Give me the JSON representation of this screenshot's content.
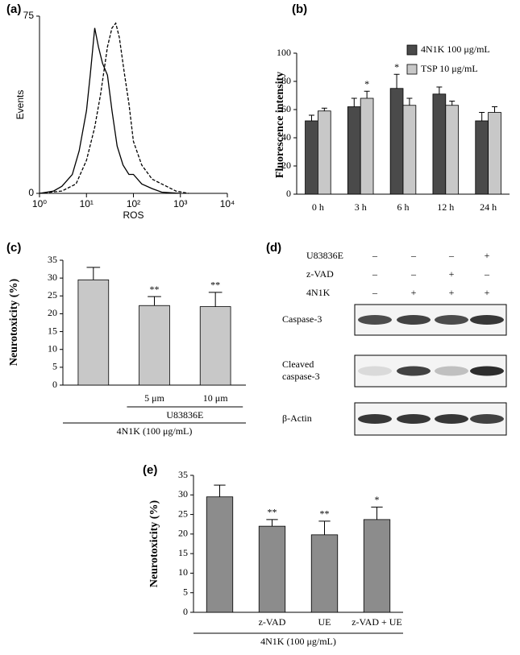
{
  "chart_data": [
    {
      "type": "line",
      "panel_label": "(a)",
      "xlabel": "ROS",
      "ylabel": "Events",
      "log_x": true,
      "xlim": [
        1,
        10000
      ],
      "xticks": [
        {
          "value": 1,
          "label": "10⁰"
        },
        {
          "value": 10,
          "label": "10¹"
        },
        {
          "value": 100,
          "label": "10²"
        },
        {
          "value": 1000,
          "label": "10³"
        },
        {
          "value": 10000,
          "label": "10⁴"
        }
      ],
      "ylim": [
        0,
        75
      ],
      "yticks": [
        0,
        75
      ],
      "series": [
        {
          "style": "solid",
          "color": "#000000",
          "x": [
            1,
            2,
            3,
            5,
            7,
            10,
            12,
            15,
            18,
            22,
            28,
            35,
            45,
            60,
            80,
            100,
            150,
            250,
            400,
            1000
          ],
          "values": [
            0,
            1,
            3,
            8,
            18,
            35,
            50,
            70,
            62,
            55,
            50,
            35,
            20,
            12,
            8,
            8,
            4,
            2,
            0.5,
            0
          ]
        },
        {
          "style": "dashed",
          "color": "#000000",
          "x": [
            1,
            3,
            6,
            10,
            15,
            20,
            28,
            35,
            42,
            50,
            65,
            80,
            100,
            150,
            250,
            400,
            800,
            1500
          ],
          "values": [
            0,
            1,
            4,
            14,
            28,
            42,
            62,
            70,
            72,
            66,
            50,
            38,
            22,
            12,
            6,
            4,
            1,
            0
          ]
        }
      ]
    },
    {
      "type": "bar",
      "panel_label": "(b)",
      "ylabel": "Fluorescence intensity",
      "categories": [
        "0 h",
        "3 h",
        "6 h",
        "12 h",
        "24 h"
      ],
      "ylim": [
        0,
        100
      ],
      "yticks": [
        0,
        20,
        40,
        60,
        80,
        100
      ],
      "legend": "upper right",
      "series": [
        {
          "name": "4N1K 100 μg/mL",
          "color": "#4a4a4a",
          "values": [
            52,
            62,
            75,
            71,
            52
          ],
          "errors": [
            4,
            6,
            10,
            5,
            6
          ],
          "annotations": [
            null,
            null,
            "*",
            null,
            null
          ]
        },
        {
          "name": "TSP 10 μg/mL",
          "color": "#c8c8c8",
          "values": [
            59,
            68,
            63,
            63,
            58
          ],
          "errors": [
            2,
            5,
            5,
            3,
            4
          ],
          "annotations": [
            null,
            "*",
            null,
            null,
            null
          ]
        }
      ]
    },
    {
      "type": "bar",
      "panel_label": "(c)",
      "ylabel": "Neurotoxicity (%)",
      "categories": [
        null,
        "5 μm",
        "10 μm"
      ],
      "ylim": [
        0,
        35
      ],
      "yticks": [
        0,
        5,
        10,
        15,
        20,
        25,
        30,
        35
      ],
      "color": "#c8c8c8",
      "values": [
        29.5,
        22.3,
        22.0
      ],
      "errors": [
        3.5,
        2.5,
        4
      ],
      "annotations": [
        null,
        "**",
        "**"
      ],
      "group_labels": [
        "U83836E",
        "4N1K (100 μg/mL)"
      ]
    },
    {
      "type": "bar",
      "panel_label": "(e)",
      "ylabel": "Neurotoxicity (%)",
      "categories": [
        null,
        "z-VAD",
        "UE",
        "z-VAD + UE"
      ],
      "ylim": [
        0,
        35
      ],
      "yticks": [
        0,
        5,
        10,
        15,
        20,
        25,
        30,
        35
      ],
      "color": "#8c8c8c",
      "values": [
        29.5,
        22.0,
        19.8,
        23.7
      ],
      "errors": [
        3,
        1.7,
        3.5,
        3.2
      ],
      "annotations": [
        null,
        "**",
        "**",
        "*"
      ],
      "group_labels": [
        "4N1K (100 μg/mL)"
      ]
    }
  ],
  "blot": {
    "panel_label": "(d)",
    "treatments": [
      {
        "name": "U83836E",
        "signs": [
          "–",
          "–",
          "–",
          "+"
        ]
      },
      {
        "name": "z-VAD",
        "signs": [
          "–",
          "–",
          "+",
          "–"
        ]
      },
      {
        "name": "4N1K",
        "signs": [
          "–",
          "+",
          "+",
          "+"
        ]
      }
    ],
    "bands": [
      [
        "Caspase-3"
      ],
      [
        "Cleaved",
        "caspase-3"
      ],
      [
        "β-Actin"
      ]
    ]
  }
}
